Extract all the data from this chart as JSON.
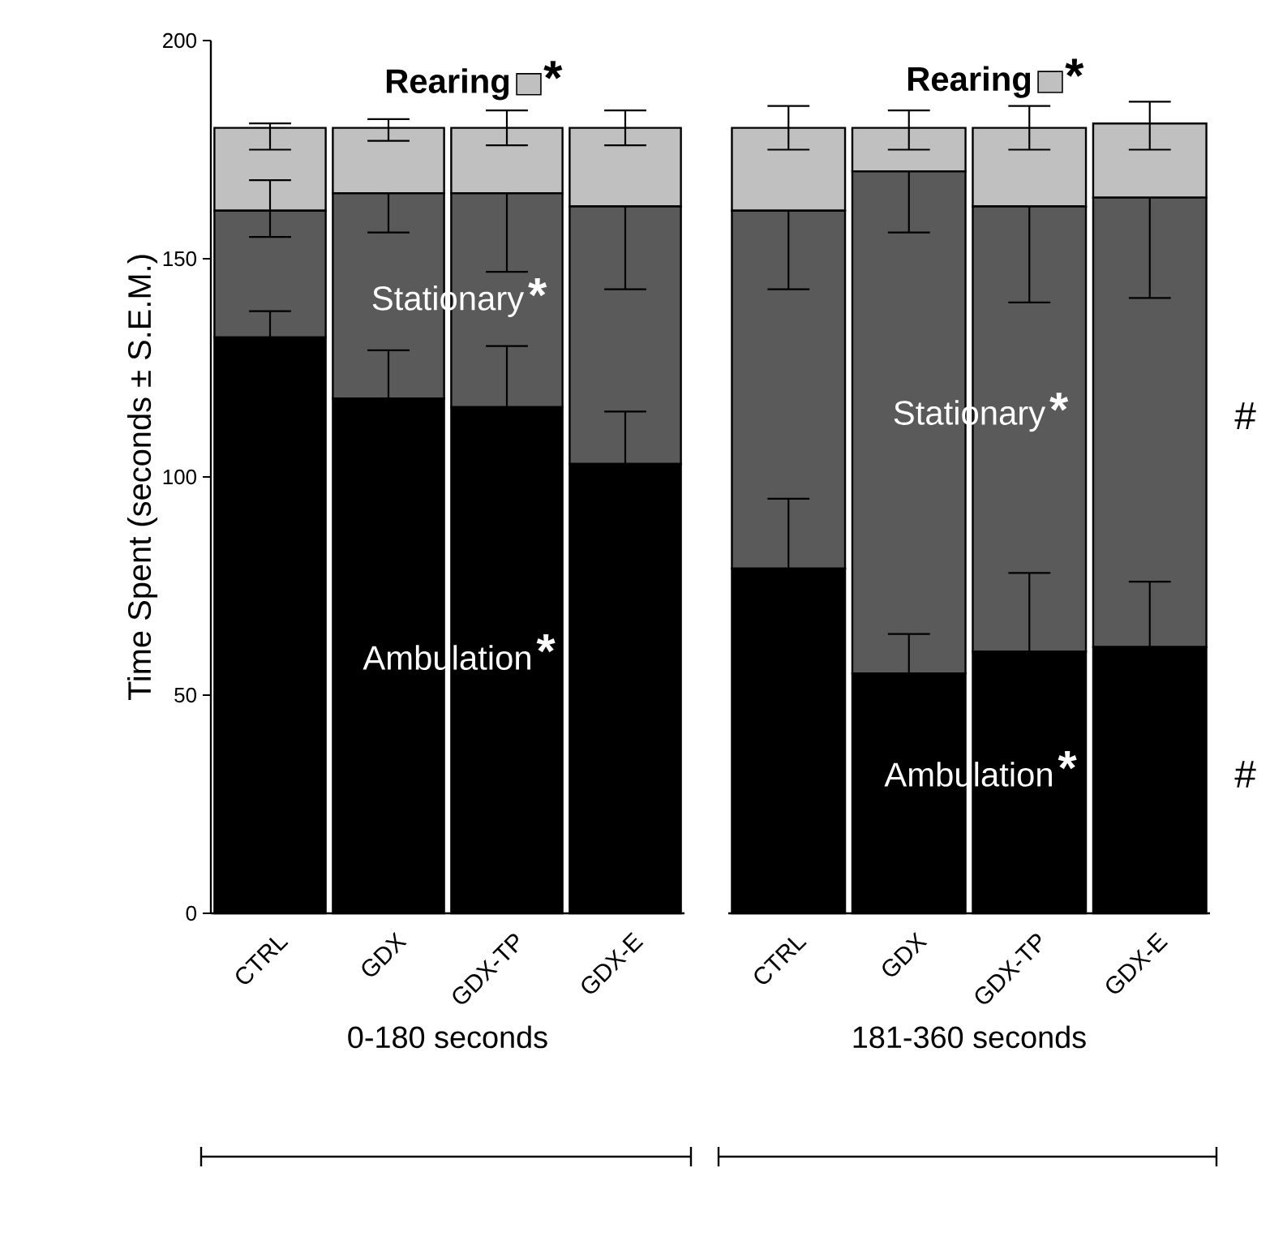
{
  "chart_data": [
    {
      "type": "bar",
      "stacked": true,
      "categories": [
        "CTRL",
        "GDX",
        "GDX-TP",
        "GDX-E"
      ],
      "xlabel": "0-180 seconds",
      "ylabel": "Time Spent (seconds ± S.E.M.)",
      "ylim": [
        0,
        200
      ],
      "yticks": [
        0,
        50,
        100,
        150,
        200
      ],
      "series": [
        {
          "name": "Ambulation",
          "color": "#000000",
          "values": [
            132,
            118,
            116,
            103
          ],
          "errors": [
            [
              132,
              138
            ],
            [
              118,
              129
            ],
            [
              116,
              130
            ],
            [
              103,
              115
            ]
          ]
        },
        {
          "name": "Stationary",
          "color": "#5a5a5a",
          "values": [
            29,
            47,
            49,
            59
          ],
          "errors": [
            [
              155,
              168
            ],
            [
              156,
              165
            ],
            [
              147,
              165
            ],
            [
              143,
              162
            ]
          ]
        },
        {
          "name": "Rearing",
          "color": "#c0c0c0",
          "values": [
            19,
            15,
            15,
            18
          ],
          "errors": [
            [
              175,
              181
            ],
            [
              177,
              182
            ],
            [
              176,
              184
            ],
            [
              176,
              184
            ]
          ]
        }
      ],
      "annotations": [
        "*",
        "*",
        "*"
      ]
    },
    {
      "type": "bar",
      "stacked": true,
      "categories": [
        "CTRL",
        "GDX",
        "GDX-TP",
        "GDX-E"
      ],
      "xlabel": "181-360 seconds",
      "ylim": [
        0,
        200
      ],
      "yticks": [
        0,
        50,
        100,
        150,
        200
      ],
      "tick_labels": "x",
      "series": [
        {
          "name": "Ambulation",
          "color": "#000000",
          "values": [
            79,
            55,
            60,
            61
          ],
          "errors": [
            [
              79,
              95
            ],
            [
              55,
              64
            ],
            [
              60,
              78
            ],
            [
              61,
              76
            ]
          ]
        },
        {
          "name": "Stationary",
          "color": "#5a5a5a",
          "values": [
            82,
            115,
            102,
            103
          ],
          "errors": [
            [
              143,
              161
            ],
            [
              156,
              170
            ],
            [
              140,
              162
            ],
            [
              141,
              164
            ]
          ]
        },
        {
          "name": "Rearing",
          "color": "#c0c0c0",
          "values": [
            19,
            10,
            18,
            17
          ],
          "errors": [
            [
              175,
              185
            ],
            [
              175,
              184
            ],
            [
              175,
              185
            ],
            [
              175,
              186
            ]
          ]
        }
      ],
      "annotations": [
        "*",
        "*",
        "*",
        "#",
        "#"
      ]
    }
  ]
}
